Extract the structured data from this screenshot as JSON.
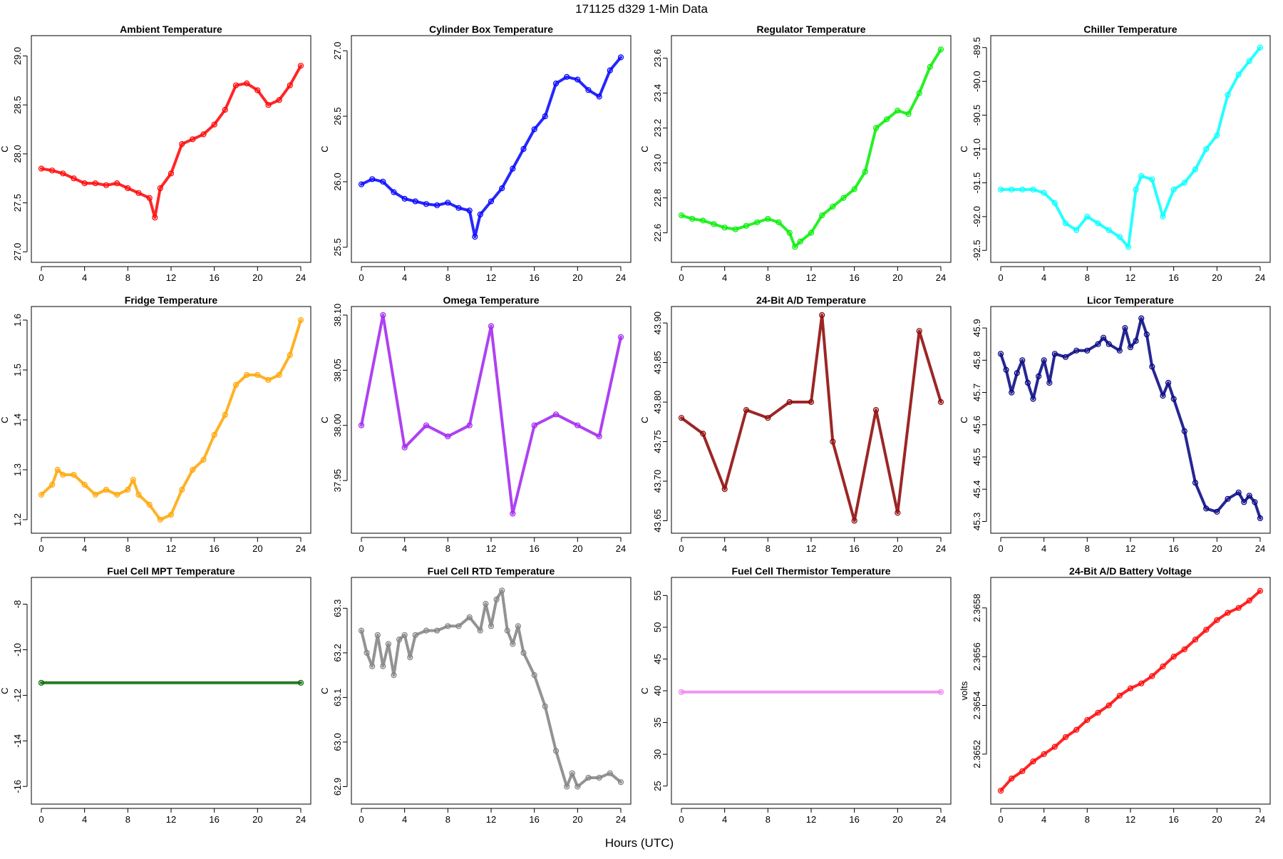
{
  "page": {
    "title": "171125   d329   1-Min Data",
    "xlabel": "Hours (UTC)"
  },
  "chart_data": [
    {
      "type": "scatter",
      "title": "Ambient Temperature",
      "ylabel": "C",
      "color": "#ff0000",
      "xlim": [
        0,
        24
      ],
      "ylim": [
        26.98,
        29.12
      ],
      "xticks": [
        0,
        4,
        8,
        12,
        16,
        20,
        24
      ],
      "yticks": [
        "27.0",
        "27.5",
        "28.0",
        "28.5",
        "29.0"
      ],
      "x": [
        0,
        1,
        2,
        3,
        4,
        5,
        6,
        7,
        8,
        9,
        10,
        10.5,
        11,
        12,
        13,
        14,
        15,
        16,
        17,
        18,
        19,
        20,
        21,
        22,
        23,
        24
      ],
      "y": [
        27.85,
        27.83,
        27.8,
        27.75,
        27.7,
        27.7,
        27.68,
        27.7,
        27.65,
        27.6,
        27.55,
        27.35,
        27.65,
        27.8,
        28.1,
        28.15,
        28.2,
        28.3,
        28.45,
        28.7,
        28.72,
        28.65,
        28.5,
        28.55,
        28.7,
        28.9
      ]
    },
    {
      "type": "scatter",
      "title": "Cylinder Box Temperature",
      "ylabel": "C",
      "color": "#0000ff",
      "xlim": [
        0,
        24
      ],
      "ylim": [
        25.45,
        27.05
      ],
      "xticks": [
        0,
        4,
        8,
        12,
        16,
        20,
        24
      ],
      "yticks": [
        "25.5",
        "26.0",
        "26.5",
        "27.0"
      ],
      "x": [
        0,
        1,
        2,
        3,
        4,
        5,
        6,
        7,
        8,
        9,
        10,
        10.5,
        11,
        12,
        13,
        14,
        15,
        16,
        17,
        18,
        19,
        20,
        21,
        22,
        23,
        24
      ],
      "y": [
        25.98,
        26.02,
        26.0,
        25.92,
        25.87,
        25.85,
        25.83,
        25.82,
        25.84,
        25.8,
        25.78,
        25.58,
        25.75,
        25.85,
        25.95,
        26.1,
        26.25,
        26.4,
        26.5,
        26.75,
        26.8,
        26.78,
        26.7,
        26.65,
        26.85,
        26.95
      ]
    },
    {
      "type": "scatter",
      "title": "Regulator Temperature",
      "ylabel": "C",
      "color": "#00ee00",
      "xlim": [
        0,
        24
      ],
      "ylim": [
        22.48,
        23.68
      ],
      "xticks": [
        0,
        4,
        8,
        12,
        16,
        20,
        24
      ],
      "yticks": [
        "22.6",
        "22.8",
        "23.0",
        "23.2",
        "23.4",
        "23.6"
      ],
      "x": [
        0,
        1,
        2,
        3,
        4,
        5,
        6,
        7,
        8,
        9,
        10,
        10.5,
        11,
        12,
        13,
        14,
        15,
        16,
        17,
        18,
        19,
        20,
        21,
        22,
        23,
        24
      ],
      "y": [
        22.7,
        22.68,
        22.67,
        22.65,
        22.63,
        22.62,
        22.64,
        22.66,
        22.68,
        22.66,
        22.6,
        22.52,
        22.55,
        22.6,
        22.7,
        22.75,
        22.8,
        22.85,
        22.95,
        23.2,
        23.25,
        23.3,
        23.28,
        23.4,
        23.55,
        23.65
      ]
    },
    {
      "type": "scatter",
      "title": "Chiller Temperature",
      "ylabel": "C",
      "color": "#00ffff",
      "xlim": [
        0,
        24
      ],
      "ylim": [
        -92.55,
        -89.45
      ],
      "xticks": [
        0,
        4,
        8,
        12,
        16,
        20,
        24
      ],
      "yticks": [
        "-92.5",
        "-92.0",
        "-91.5",
        "-91.0",
        "-90.5",
        "-90.0",
        "-89.5"
      ],
      "x": [
        0,
        1,
        2,
        3,
        4,
        5,
        6,
        7,
        8,
        9,
        10,
        11,
        11.8,
        12.5,
        13,
        14,
        15,
        16,
        17,
        18,
        19,
        20,
        21,
        22,
        23,
        24
      ],
      "y": [
        -91.6,
        -91.6,
        -91.6,
        -91.6,
        -91.65,
        -91.8,
        -92.1,
        -92.2,
        -92.0,
        -92.1,
        -92.2,
        -92.3,
        -92.45,
        -91.6,
        -91.4,
        -91.45,
        -92.0,
        -91.6,
        -91.5,
        -91.3,
        -91.0,
        -90.8,
        -90.2,
        -89.9,
        -89.7,
        -89.5
      ]
    },
    {
      "type": "scatter",
      "title": "Fridge Temperature",
      "ylabel": "C",
      "color": "#ffa500",
      "xlim": [
        0,
        24
      ],
      "ylim": [
        1.19,
        1.61
      ],
      "xticks": [
        0,
        4,
        8,
        12,
        16,
        20,
        24
      ],
      "yticks": [
        "1.2",
        "1.3",
        "1.4",
        "1.5",
        "1.6"
      ],
      "x": [
        0,
        1,
        1.5,
        2,
        3,
        4,
        5,
        6,
        7,
        8,
        8.5,
        9,
        10,
        11,
        12,
        13,
        14,
        15,
        16,
        17,
        18,
        19,
        20,
        21,
        22,
        23,
        24
      ],
      "y": [
        1.25,
        1.27,
        1.3,
        1.29,
        1.29,
        1.27,
        1.25,
        1.26,
        1.25,
        1.26,
        1.28,
        1.25,
        1.23,
        1.2,
        1.21,
        1.26,
        1.3,
        1.32,
        1.37,
        1.41,
        1.47,
        1.49,
        1.49,
        1.48,
        1.49,
        1.53,
        1.6
      ]
    },
    {
      "type": "scatter",
      "title": "Omega Temperature",
      "ylabel": "C",
      "color": "#a020f0",
      "xlim": [
        0,
        24
      ],
      "ylim": [
        37.91,
        38.1
      ],
      "xticks": [
        0,
        4,
        8,
        12,
        16,
        20,
        24
      ],
      "yticks": [
        "37.95",
        "38.00",
        "38.05",
        "38.10"
      ],
      "x": [
        0,
        2,
        4,
        6,
        8,
        10,
        12,
        14,
        16,
        18,
        20,
        22,
        24
      ],
      "y": [
        38.0,
        38.1,
        37.98,
        38.0,
        37.99,
        38.0,
        38.09,
        37.92,
        38.0,
        38.01,
        38.0,
        37.99,
        38.08
      ]
    },
    {
      "type": "scatter",
      "title": "24-Bit A/D Temperature",
      "ylabel": "C",
      "color": "#8b0000",
      "xlim": [
        0,
        24
      ],
      "ylim": [
        43.645,
        43.91
      ],
      "xticks": [
        0,
        4,
        8,
        12,
        16,
        20,
        24
      ],
      "yticks": [
        "43.65",
        "43.70",
        "43.75",
        "43.80",
        "43.85",
        "43.90"
      ],
      "x": [
        0,
        2,
        4,
        6,
        8,
        10,
        12,
        13,
        14,
        16,
        18,
        20,
        22,
        24
      ],
      "y": [
        43.78,
        43.76,
        43.69,
        43.79,
        43.78,
        43.8,
        43.8,
        43.91,
        43.75,
        43.65,
        43.79,
        43.66,
        43.89,
        43.8
      ]
    },
    {
      "type": "scatter",
      "title": "Licor Temperature",
      "ylabel": "C",
      "color": "#000080",
      "xlim": [
        0,
        24
      ],
      "ylim": [
        45.29,
        45.94
      ],
      "xticks": [
        0,
        4,
        8,
        12,
        16,
        20,
        24
      ],
      "yticks": [
        "45.3",
        "45.4",
        "45.5",
        "45.6",
        "45.7",
        "45.8",
        "45.9"
      ],
      "x": [
        0,
        0.5,
        1,
        1.5,
        2,
        2.5,
        3,
        3.5,
        4,
        4.5,
        5,
        6,
        7,
        8,
        9,
        9.5,
        10,
        11,
        11.5,
        12,
        12.5,
        13,
        13.5,
        14,
        15,
        15.5,
        16,
        17,
        18,
        19,
        20,
        21,
        22,
        22.5,
        23,
        23.5,
        24
      ],
      "y": [
        45.82,
        45.77,
        45.7,
        45.76,
        45.8,
        45.73,
        45.68,
        45.75,
        45.8,
        45.73,
        45.82,
        45.81,
        45.83,
        45.83,
        45.85,
        45.87,
        45.85,
        45.83,
        45.9,
        45.84,
        45.86,
        45.93,
        45.88,
        45.78,
        45.69,
        45.73,
        45.68,
        45.58,
        45.42,
        45.34,
        45.33,
        45.37,
        45.39,
        45.36,
        45.38,
        45.36,
        45.31
      ]
    },
    {
      "type": "scatter",
      "title": "Fuel Cell MPT Temperature",
      "ylabel": "C",
      "color": "#006400",
      "xlim": [
        0,
        24
      ],
      "ylim": [
        -16.4,
        -7.2
      ],
      "xticks": [
        0,
        4,
        8,
        12,
        16,
        20,
        24
      ],
      "yticks": [
        "-16",
        "-14",
        "-12",
        "-10",
        "-8"
      ],
      "x": [
        0,
        24
      ],
      "y": [
        -11.45,
        -11.45
      ]
    },
    {
      "type": "scatter",
      "title": "Fuel Cell RTD Temperature",
      "ylabel": "C",
      "color": "#808080",
      "xlim": [
        0,
        24
      ],
      "ylim": [
        62.88,
        63.35
      ],
      "xticks": [
        0,
        4,
        8,
        12,
        16,
        20,
        24
      ],
      "yticks": [
        "62.9",
        "63.0",
        "63.1",
        "63.2",
        "63.3"
      ],
      "x": [
        0,
        0.5,
        1,
        1.5,
        2,
        2.5,
        3,
        3.5,
        4,
        4.5,
        5,
        6,
        7,
        8,
        9,
        10,
        11,
        11.5,
        12,
        12.5,
        13,
        13.5,
        14,
        14.5,
        15,
        16,
        17,
        18,
        19,
        19.5,
        20,
        21,
        22,
        23,
        24
      ],
      "y": [
        63.25,
        63.2,
        63.17,
        63.24,
        63.17,
        63.22,
        63.15,
        63.23,
        63.24,
        63.19,
        63.24,
        63.25,
        63.25,
        63.26,
        63.26,
        63.28,
        63.25,
        63.31,
        63.26,
        63.32,
        63.34,
        63.25,
        63.22,
        63.26,
        63.2,
        63.15,
        63.08,
        62.98,
        62.9,
        62.93,
        62.9,
        62.92,
        62.92,
        62.93,
        62.91
      ]
    },
    {
      "type": "scatter",
      "title": "Fuel Cell Thermistor Temperature",
      "ylabel": "C",
      "color": "#ee82ee",
      "xlim": [
        0,
        24
      ],
      "ylim": [
        23.5,
        56.5
      ],
      "xticks": [
        0,
        4,
        8,
        12,
        16,
        20,
        24
      ],
      "yticks": [
        "25",
        "30",
        "35",
        "40",
        "45",
        "50",
        "55"
      ],
      "x": [
        0,
        24
      ],
      "y": [
        39.8,
        39.8
      ]
    },
    {
      "type": "scatter",
      "title": "24-Bit A/D Battery Voltage",
      "ylabel": "volts",
      "color": "#ff0000",
      "xlim": [
        0,
        24
      ],
      "ylim": [
        2.36503,
        2.36589
      ],
      "xticks": [
        0,
        4,
        8,
        12,
        16,
        20,
        24
      ],
      "yticks": [
        "2.3652",
        "2.3654",
        "2.3656",
        "2.3658"
      ],
      "x": [
        0,
        1,
        2,
        3,
        4,
        5,
        6,
        7,
        8,
        9,
        10,
        11,
        12,
        13,
        14,
        15,
        16,
        17,
        18,
        19,
        20,
        21,
        22,
        23,
        24
      ],
      "y": [
        2.36505,
        2.3651,
        2.36513,
        2.36517,
        2.3652,
        2.36523,
        2.36527,
        2.3653,
        2.36534,
        2.36537,
        2.3654,
        2.36544,
        2.36547,
        2.36549,
        2.36552,
        2.36556,
        2.3656,
        2.36563,
        2.36567,
        2.36571,
        2.36575,
        2.36578,
        2.3658,
        2.36583,
        2.36587
      ]
    }
  ]
}
